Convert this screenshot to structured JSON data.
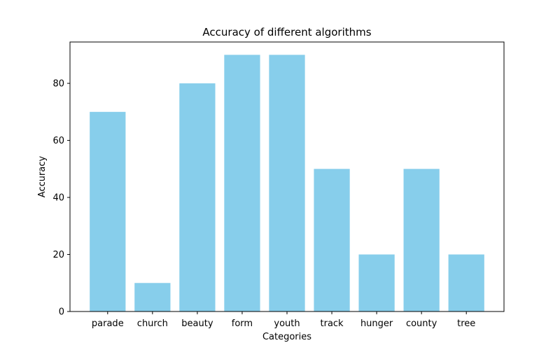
{
  "chart_data": {
    "type": "bar",
    "title": "Accuracy of different algorithms",
    "xlabel": "Categories",
    "ylabel": "Accuracy",
    "categories": [
      "parade",
      "church",
      "beauty",
      "form",
      "youth",
      "track",
      "hunger",
      "county",
      "tree"
    ],
    "values": [
      70,
      10,
      80,
      90,
      90,
      50,
      20,
      50,
      20
    ],
    "ylim": [
      0,
      94.5
    ],
    "yticks": [
      0,
      20,
      40,
      60,
      80
    ],
    "bar_color": "#87ceeb",
    "grid": false,
    "legend": "none"
  }
}
